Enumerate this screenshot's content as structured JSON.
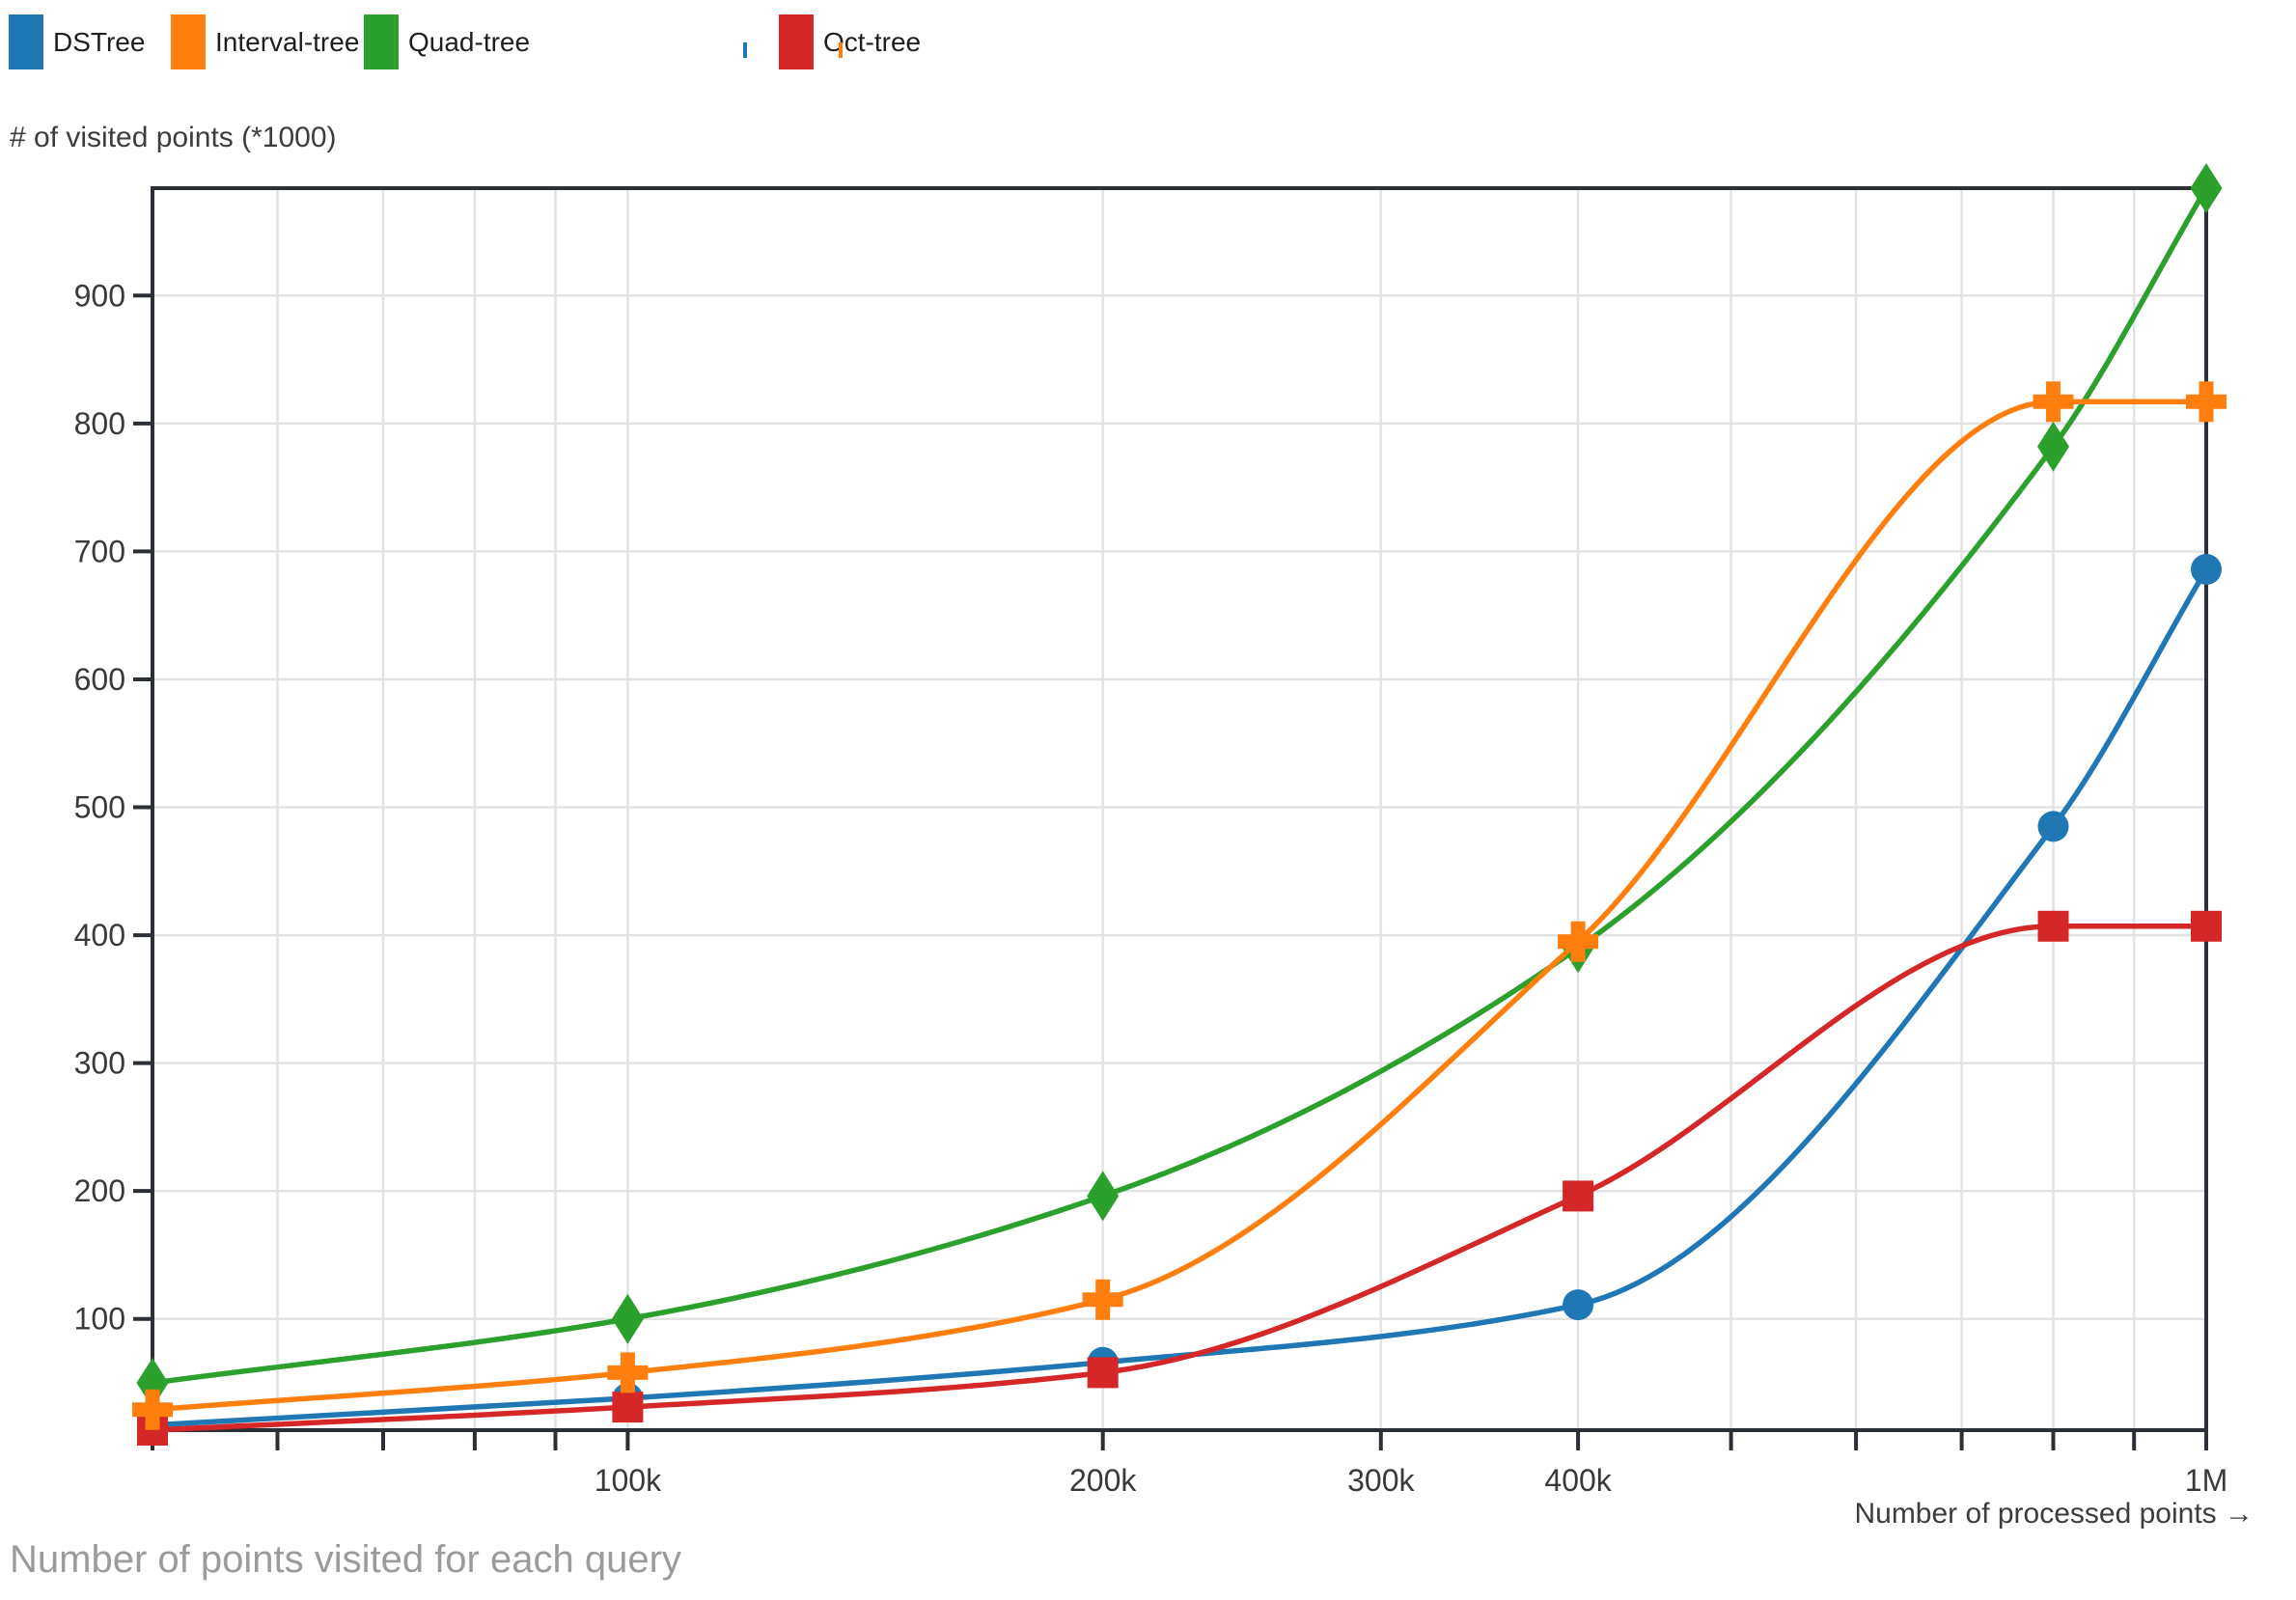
{
  "legend": {
    "items": [
      {
        "label": "DSTree"
      },
      {
        "label": "Interval-tree"
      },
      {
        "label": "Quad-tree"
      },
      {
        "label": "Oct-tree"
      }
    ]
  },
  "chart_data": {
    "type": "line",
    "title": "Number of points visited for each query",
    "xlabel": "Number of processed points →",
    "ylabel": "# of visited points (*1000)",
    "x_scale": "log",
    "grid": true,
    "legend_position": "top-left",
    "x": [
      50000,
      100000,
      200000,
      400000,
      800000,
      1000000
    ],
    "x_domain": [
      50000,
      1000000
    ],
    "y_domain": [
      13,
      984
    ],
    "x_ticks": [
      {
        "value": 50000,
        "label": ""
      },
      {
        "value": 60000,
        "label": ""
      },
      {
        "value": 70000,
        "label": ""
      },
      {
        "value": 80000,
        "label": ""
      },
      {
        "value": 90000,
        "label": ""
      },
      {
        "value": 100000,
        "label": "100k"
      },
      {
        "value": 200000,
        "label": "200k"
      },
      {
        "value": 300000,
        "label": "300k"
      },
      {
        "value": 400000,
        "label": "400k"
      },
      {
        "value": 500000,
        "label": ""
      },
      {
        "value": 600000,
        "label": ""
      },
      {
        "value": 700000,
        "label": ""
      },
      {
        "value": 800000,
        "label": ""
      },
      {
        "value": 900000,
        "label": ""
      },
      {
        "value": 1000000,
        "label": "1M"
      }
    ],
    "y_ticks": [
      {
        "value": 100,
        "label": "100"
      },
      {
        "value": 200,
        "label": "200"
      },
      {
        "value": 300,
        "label": "300"
      },
      {
        "value": 400,
        "label": "400"
      },
      {
        "value": 500,
        "label": "500"
      },
      {
        "value": 600,
        "label": "600"
      },
      {
        "value": 700,
        "label": "700"
      },
      {
        "value": 800,
        "label": "800"
      },
      {
        "value": 900,
        "label": "900"
      }
    ],
    "series": [
      {
        "name": "DSTree",
        "color": "#1f77b4",
        "marker": "circle",
        "values": [
          17,
          38,
          66,
          111,
          485,
          686
        ]
      },
      {
        "name": "Interval-tree",
        "color": "#ff7f0e",
        "marker": "plus",
        "values": [
          29,
          58,
          115,
          395,
          817,
          817
        ]
      },
      {
        "name": "Quad-tree",
        "color": "#2ca02c",
        "marker": "diamond",
        "values": [
          50,
          100,
          196,
          390,
          782,
          984
        ]
      },
      {
        "name": "Oct-tree",
        "color": "#d62728",
        "marker": "square",
        "values": [
          13,
          31,
          58,
          196,
          407,
          407
        ]
      }
    ],
    "colors": {
      "spine": "#2b2f36",
      "gridline": "#e3e3e3",
      "tick_text": "#3a3a3a"
    }
  }
}
